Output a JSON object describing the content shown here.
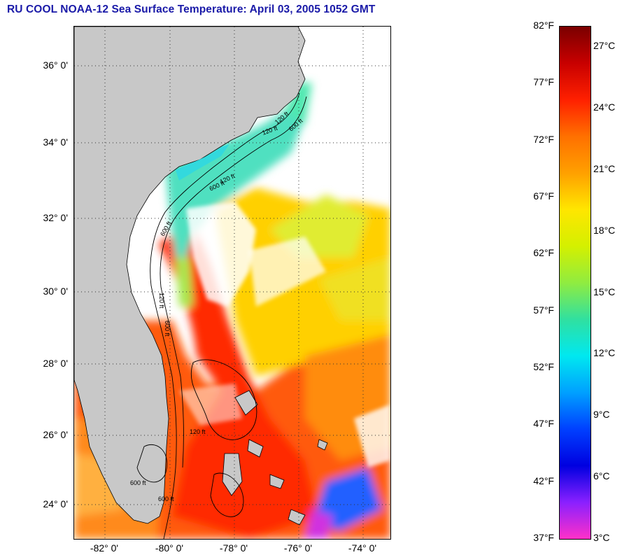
{
  "title": "RU COOL  NOAA-12  Sea Surface Temperature:  April 03, 2005 1052 GMT",
  "map": {
    "lon_range": [
      -83,
      -73.2
    ],
    "lat_range": [
      23,
      37
    ],
    "lat_ticks": [
      "36° 0'",
      "34° 0'",
      "32° 0'",
      "30° 0'",
      "28° 0'",
      "26° 0'",
      "24° 0'"
    ],
    "lon_ticks": [
      "-82° 0'",
      "-80° 0'",
      "-78° 0'",
      "-76° 0'",
      "-74° 0'"
    ],
    "contour_labels": [
      "120 ft",
      "600 ft",
      "120 ft",
      "600 ft",
      "120 ft",
      "600 ft",
      "120 ft",
      "600 ft",
      "600 ft",
      "120 ft",
      "600 ft"
    ],
    "colors": {
      "land": "#c8c8c8",
      "cloud": "#ffffff",
      "contour": "#000000"
    }
  },
  "colorbar": {
    "fahrenheit_labels": [
      "82°F",
      "77°F",
      "72°F",
      "67°F",
      "62°F",
      "57°F",
      "52°F",
      "47°F",
      "42°F",
      "37°F"
    ],
    "celsius_labels": [
      "27°C",
      "24°C",
      "21°C",
      "18°C",
      "15°C",
      "12°C",
      "9°C",
      "6°C",
      "3°C"
    ],
    "celsius_positions": [
      0.04,
      0.16,
      0.28,
      0.4,
      0.52,
      0.64,
      0.76,
      0.88,
      1.0
    ],
    "colors_top_to_bottom": [
      "#7a0000",
      "#c80000",
      "#ff2000",
      "#ff7000",
      "#ffa000",
      "#ffe600",
      "#d4f000",
      "#90ec40",
      "#30e0a0",
      "#00e8f0",
      "#00a0ff",
      "#0040ff",
      "#0000e0",
      "#8a20ff",
      "#ff30c8"
    ]
  }
}
